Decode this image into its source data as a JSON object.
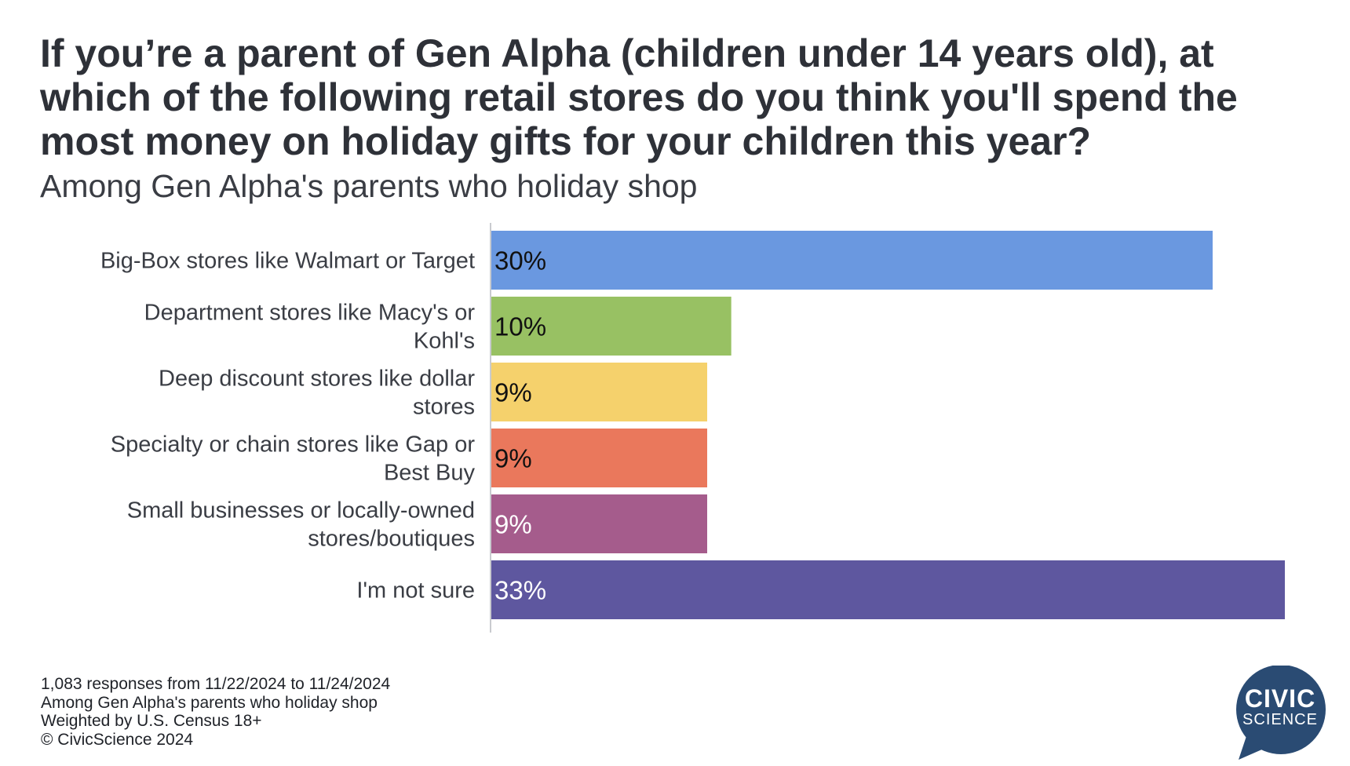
{
  "title": "If you’re a parent of Gen Alpha (children under 14 years old), at which of the following retail stores do you think you'll spend the most money on holiday gifts for your children this year?",
  "subtitle": "Among Gen Alpha's parents who holiday shop",
  "chart_data": {
    "type": "bar",
    "orientation": "horizontal",
    "categories": [
      "Big-Box stores like Walmart or Target",
      "Department stores like Macy's or Kohl's",
      "Deep discount stores like dollar stores",
      "Specialty or chain stores like Gap or Best Buy",
      "Small businesses or locally-owned stores/boutiques",
      "I'm not sure"
    ],
    "values": [
      30,
      10,
      9,
      9,
      9,
      33
    ],
    "value_labels": [
      "30%",
      "10%",
      "9%",
      "9%",
      "9%",
      "33%"
    ],
    "colors": [
      "#6a98e0",
      "#98c163",
      "#f5d16c",
      "#ea785c",
      "#a55c8c",
      "#5e579f"
    ],
    "label_colors": [
      "#111111",
      "#111111",
      "#111111",
      "#111111",
      "#ffffff",
      "#ffffff"
    ],
    "xlim": [
      0,
      33
    ],
    "grid": false,
    "legend": "none"
  },
  "footnotes": [
    "1,083 responses from 11/22/2024 to 11/24/2024",
    "Among Gen Alpha's parents who holiday shop",
    "Weighted by U.S. Census 18+",
    "© CivicScience 2024"
  ],
  "logo": {
    "line1": "CIVIC",
    "line2": "SCIENCE",
    "color": "#2a4b73",
    "icon": "civicscience-speech-bubble-logo"
  }
}
